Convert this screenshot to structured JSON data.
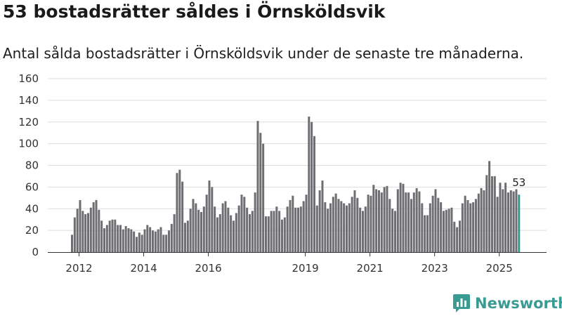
{
  "header": {
    "title": "53 bostadsrätter såldes i Örnsköldsvik",
    "subtitle": "Antal sålda bostadsrätter i Örnsköldsvik under de senaste tre månaderna."
  },
  "brand": {
    "name": "Newsworthy",
    "icon": "newsworthy-logo-icon",
    "color": "#3a9b93"
  },
  "colors": {
    "bar": "#6e6d72",
    "highlight": "#2f9a8f",
    "gridline": "#dddddd",
    "axis": "#333333"
  },
  "chart_data": {
    "type": "bar",
    "title": "53 bostadsrätter såldes i Örnsköldsvik",
    "subtitle": "Antal sålda bostadsrätter i Örnsköldsvik under de senaste tre månaderna.",
    "xlabel": "",
    "ylabel": "",
    "ylim": [
      0,
      160
    ],
    "yticks": [
      0,
      20,
      40,
      60,
      80,
      100,
      120,
      140,
      160
    ],
    "xticks": [
      "2012",
      "2014",
      "2016",
      "2019",
      "2021",
      "2023",
      "2025"
    ],
    "xtick_positions": [
      2012,
      2014,
      2016,
      2019,
      2021,
      2023,
      2025
    ],
    "x_start": 2011.75,
    "x_step": 0.0833,
    "highlight_label": "53",
    "values": [
      16,
      32,
      40,
      48,
      38,
      35,
      36,
      41,
      46,
      48,
      39,
      29,
      22,
      25,
      29,
      30,
      30,
      25,
      25,
      21,
      24,
      22,
      21,
      19,
      14,
      18,
      16,
      21,
      25,
      23,
      20,
      19,
      21,
      23,
      16,
      16,
      20,
      26,
      35,
      73,
      76,
      65,
      27,
      29,
      40,
      49,
      45,
      39,
      37,
      42,
      53,
      66,
      60,
      42,
      32,
      35,
      45,
      47,
      41,
      34,
      29,
      36,
      43,
      53,
      51,
      41,
      35,
      38,
      55,
      121,
      110,
      100,
      33,
      33,
      38,
      38,
      42,
      38,
      30,
      32,
      42,
      48,
      52,
      41,
      41,
      42,
      47,
      53,
      125,
      120,
      107,
      43,
      57,
      66,
      46,
      40,
      45,
      51,
      54,
      49,
      47,
      45,
      43,
      45,
      51,
      57,
      50,
      41,
      38,
      42,
      53,
      52,
      62,
      58,
      57,
      55,
      60,
      61,
      49,
      40,
      38,
      58,
      64,
      63,
      55,
      55,
      49,
      55,
      59,
      56,
      45,
      34,
      34,
      45,
      52,
      58,
      50,
      46,
      38,
      39,
      40,
      41,
      28,
      23,
      29,
      45,
      52,
      48,
      45,
      46,
      49,
      54,
      59,
      57,
      71,
      84,
      70,
      70,
      51,
      64,
      58,
      64,
      55,
      57,
      56,
      58,
      53
    ]
  }
}
